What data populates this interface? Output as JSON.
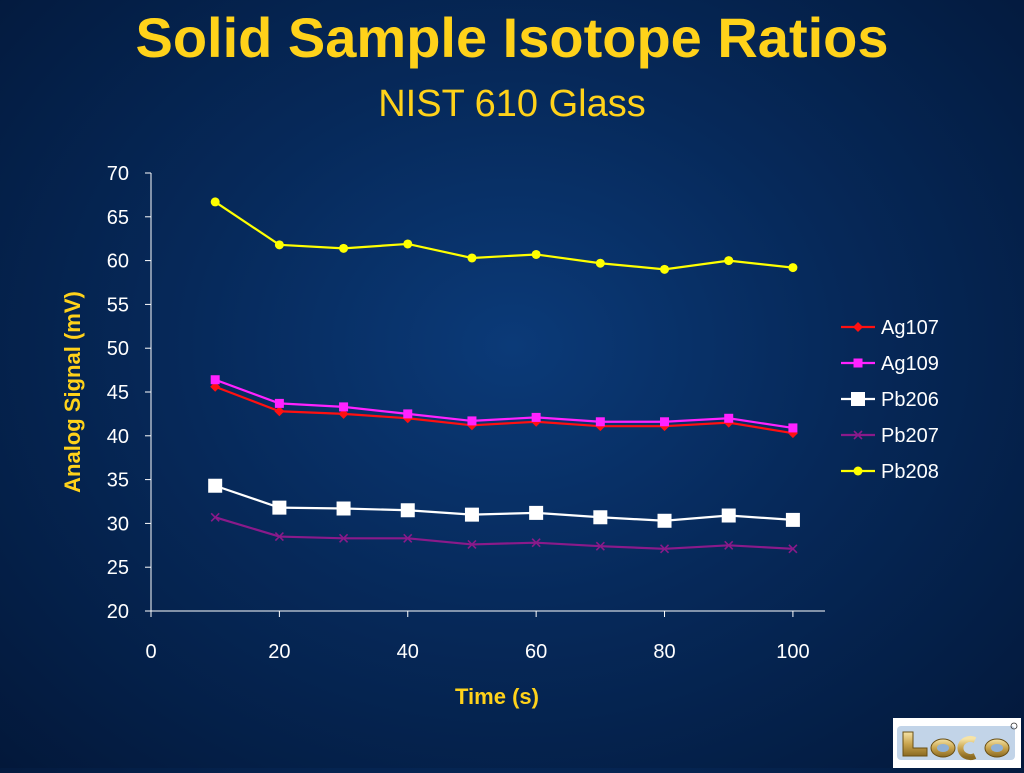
{
  "page": {
    "title": "Solid Sample Isotope Ratios",
    "subtitle": "NIST 610 Glass"
  },
  "logo": {
    "text": "Leco"
  },
  "colors": {
    "text_accent": "#ffd21a",
    "axis": "#ffffff"
  },
  "chart_data": {
    "type": "line",
    "title": "Solid Sample Isotope Ratios",
    "subtitle": "NIST 610 Glass",
    "xlabel": "Time (s)",
    "ylabel": "Analog Signal (mV)",
    "xlim": [
      0,
      105
    ],
    "ylim": [
      20,
      70
    ],
    "xticks": [
      0,
      20,
      40,
      60,
      80,
      100
    ],
    "yticks": [
      20,
      25,
      30,
      35,
      40,
      45,
      50,
      55,
      60,
      65,
      70
    ],
    "grid": false,
    "legend_position": "right",
    "x": [
      10,
      20,
      30,
      40,
      50,
      60,
      70,
      80,
      90,
      100
    ],
    "series": [
      {
        "name": "Ag107",
        "color": "#ff1010",
        "marker": "diamond",
        "values": [
          45.6,
          42.8,
          42.5,
          42.0,
          41.2,
          41.6,
          41.1,
          41.1,
          41.5,
          40.3
        ]
      },
      {
        "name": "Ag109",
        "color": "#ff22ff",
        "marker": "square",
        "values": [
          46.4,
          43.7,
          43.3,
          42.5,
          41.7,
          42.1,
          41.6,
          41.6,
          42.0,
          40.9
        ]
      },
      {
        "name": "Pb206",
        "color": "#ffffff",
        "marker": "big-square",
        "values": [
          34.3,
          31.8,
          31.7,
          31.5,
          31.0,
          31.2,
          30.7,
          30.3,
          30.9,
          30.4
        ]
      },
      {
        "name": "Pb207",
        "color": "#8a1a8a",
        "marker": "x",
        "values": [
          30.7,
          28.5,
          28.3,
          28.3,
          27.6,
          27.8,
          27.4,
          27.1,
          27.5,
          27.1
        ]
      },
      {
        "name": "Pb208",
        "color": "#ffff00",
        "marker": "circle",
        "values": [
          66.7,
          61.8,
          61.4,
          61.9,
          60.3,
          60.7,
          59.7,
          59.0,
          60.0,
          59.2
        ]
      }
    ]
  }
}
